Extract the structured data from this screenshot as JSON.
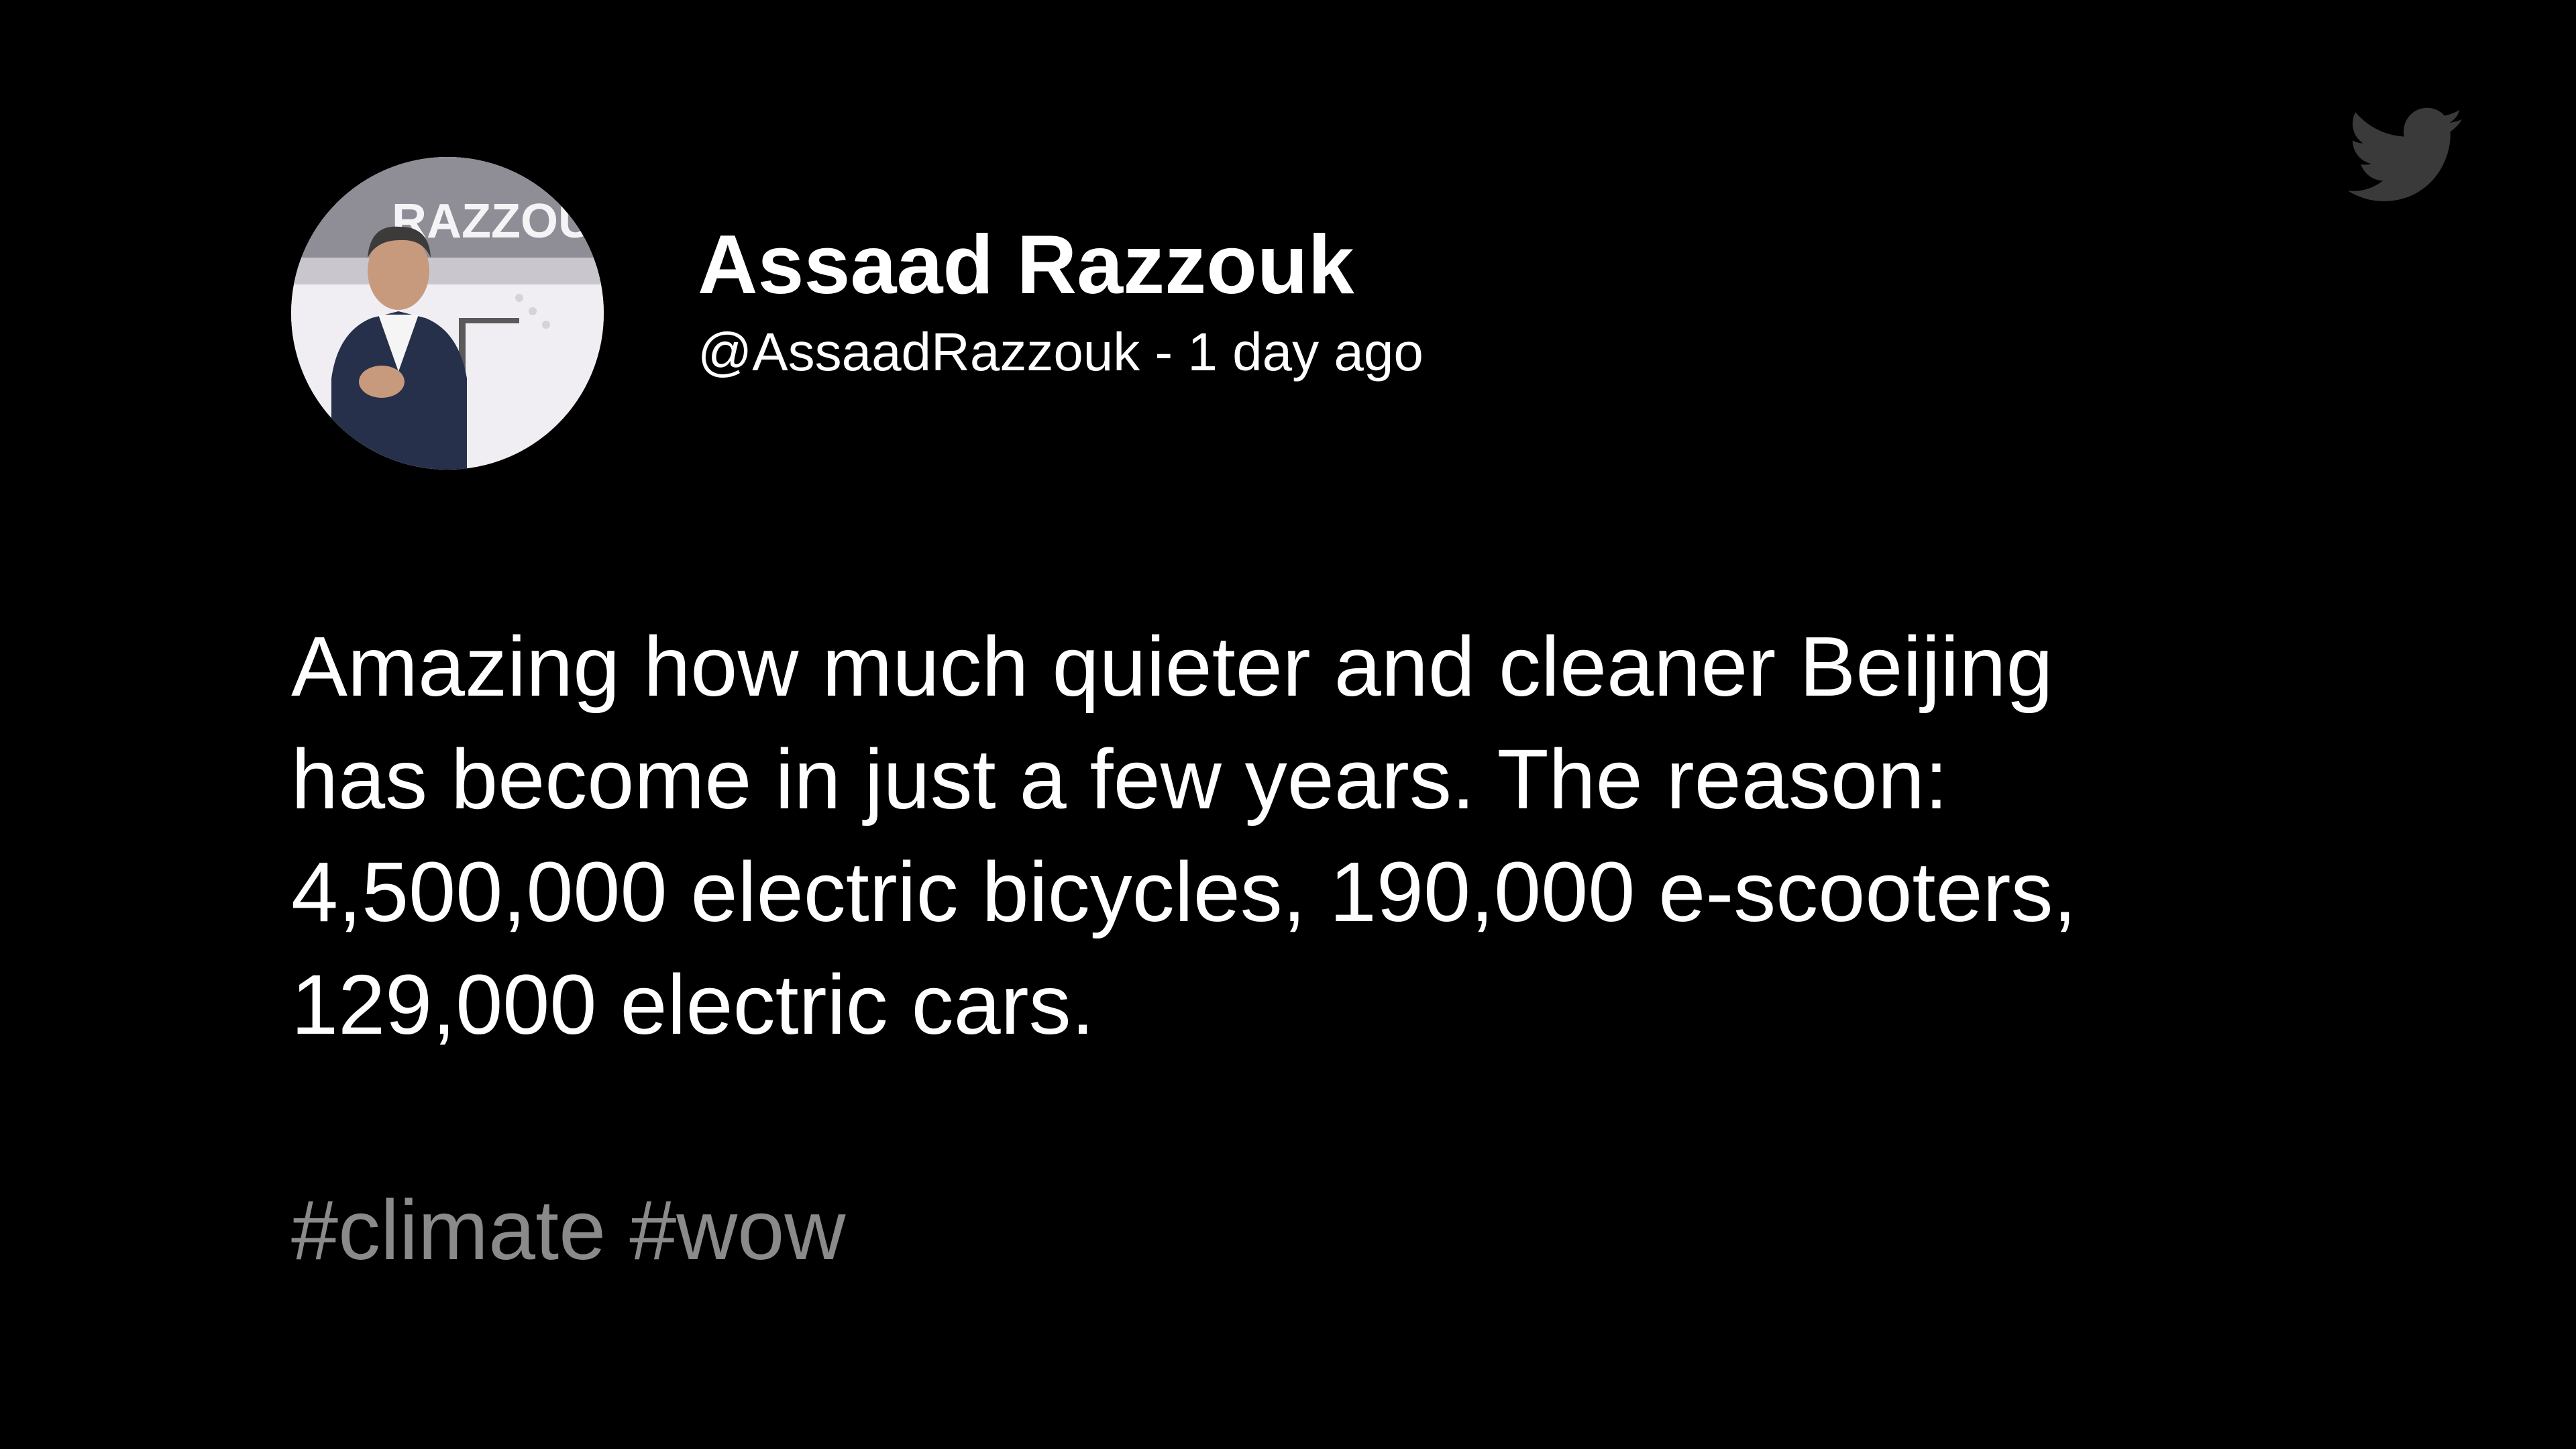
{
  "brand": {
    "logo_icon": "twitter-bird-icon",
    "logo_color": "#3a3a3a"
  },
  "author": {
    "avatar_icon": "profile-photo",
    "display_name": "Assaad Razzouk",
    "handle": "@AssaadRazzouk",
    "separator": "-",
    "timestamp": "1 day ago"
  },
  "tweet": {
    "lines": [
      "Amazing how much quieter and cleaner Beijing",
      "has become in just a few years. The reason:",
      "4,500,000 electric bicycles, 190,000 e-scooters,",
      "129,000 electric cars."
    ],
    "hashtags": [
      "#climate",
      "#wow"
    ]
  },
  "colors": {
    "background": "#000000",
    "text": "#ffffff",
    "hashtag": "#8a8a8a"
  }
}
